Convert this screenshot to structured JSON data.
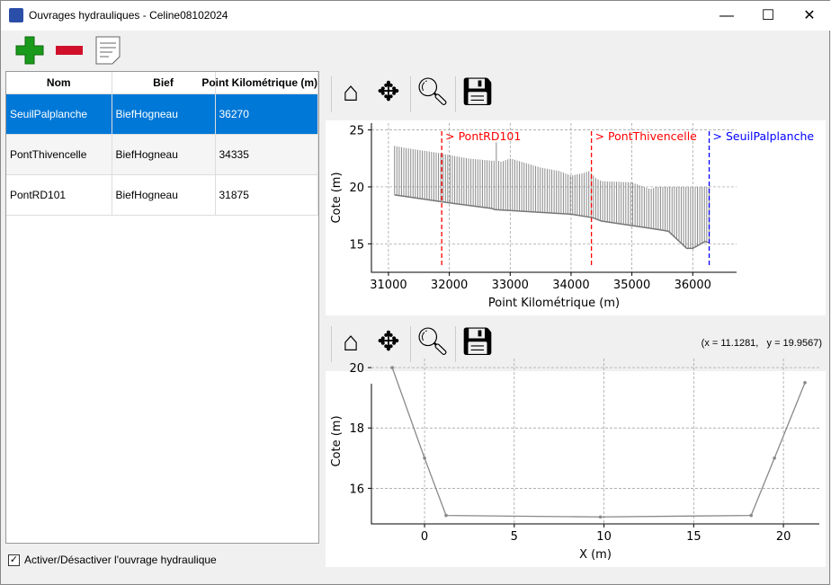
{
  "window": {
    "title": "Ouvrages hydrauliques - Celine08102024",
    "minimize": "—",
    "maximize": "☐",
    "close": "✕"
  },
  "toolbar": {
    "add": "add-icon",
    "remove": "remove-icon",
    "edit": "document-icon"
  },
  "table": {
    "headers": [
      "Nom",
      "Bief",
      "Point Kilométrique (m)"
    ],
    "rows": [
      [
        "SeuilPalplanche",
        "BiefHogneau",
        "36270"
      ],
      [
        "PontThivencelle",
        "BiefHogneau",
        "34335"
      ],
      [
        "PontRD101",
        "BiefHogneau",
        "31875"
      ]
    ],
    "selected": 0
  },
  "checkbox": {
    "label": "Activer/Désactiver l'ouvrage hydraulique",
    "checked": true
  },
  "plot_toolbar": {
    "home": "home-icon",
    "pan": "move-icon",
    "zoom": "zoom-icon",
    "save": "save-icon"
  },
  "coords": "(x = 11.1281,   y = 19.9567)",
  "chart_data": [
    {
      "type": "area",
      "xlabel": "Point Kilométrique (m)",
      "ylabel": "Cote (m)",
      "xlim": [
        30720,
        36720
      ],
      "ylim": [
        12.5,
        25.6
      ],
      "xticks": [
        31000,
        32000,
        33000,
        34000,
        35000,
        36000
      ],
      "yticks": [
        15,
        20,
        25
      ],
      "grid": true,
      "bed": {
        "x": [
          31100,
          32000,
          32700,
          32750,
          34000,
          34350,
          34500,
          35000,
          35500,
          35600,
          35900,
          36000,
          36200,
          36270
        ],
        "y": [
          19.3,
          18.6,
          18.1,
          18.0,
          17.6,
          17.3,
          17.0,
          16.6,
          16.2,
          16.1,
          14.6,
          14.6,
          15.2,
          15.1
        ]
      },
      "top": {
        "x": [
          31100,
          31300,
          31800,
          32000,
          32300,
          32700,
          32760,
          32780,
          32800,
          32850,
          33000,
          33500,
          33800,
          34000,
          34200,
          34300,
          34400,
          34500,
          35000,
          35200,
          35300,
          35400,
          36270
        ],
        "y": [
          23.6,
          23.4,
          23.0,
          22.8,
          22.5,
          22.3,
          22.3,
          25.0,
          22.3,
          22.2,
          22.5,
          21.7,
          21.4,
          21.0,
          21.2,
          21.4,
          20.8,
          20.5,
          20.4,
          20.0,
          19.8,
          20.0,
          20.0
        ]
      },
      "markers": [
        {
          "label": "> PontRD101",
          "x": 31875,
          "color": "#ff0000"
        },
        {
          "label": "> PontThivencelle",
          "x": 34335,
          "color": "#ff0000"
        },
        {
          "label": "> SeuilPalplanche",
          "x": 36270,
          "color": "#0000ff"
        }
      ]
    },
    {
      "type": "line",
      "xlabel": "X (m)",
      "ylabel": "Cote (m)",
      "xlim": [
        -2.96,
        22
      ],
      "ylim": [
        14.82,
        20.3
      ],
      "xticks": [
        0,
        5,
        10,
        15,
        20
      ],
      "yticks": [
        16,
        18,
        20
      ],
      "grid": true,
      "x": [
        -1.8,
        0,
        1.2,
        9.8,
        18.2,
        19.5,
        21.2
      ],
      "y": [
        20,
        17,
        15.1,
        15.05,
        15.1,
        17,
        19.5
      ]
    }
  ]
}
